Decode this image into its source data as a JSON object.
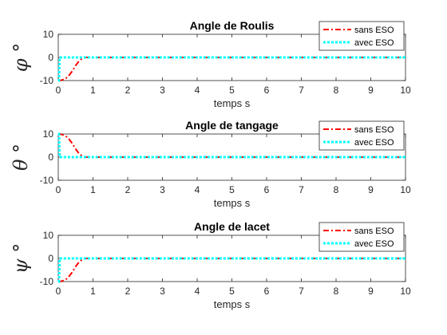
{
  "chart_data": [
    {
      "type": "line",
      "title": "Angle de Roulis",
      "xlabel": "temps s",
      "ylabel": "φ °",
      "xlim": [
        0,
        10
      ],
      "ylim": [
        -10,
        10
      ],
      "xticks": [
        "0",
        "1",
        "2",
        "3",
        "4",
        "5",
        "6",
        "7",
        "8",
        "9",
        "10"
      ],
      "yticks": [
        "10",
        "0",
        "-10"
      ],
      "legend_position": "top-right",
      "series": [
        {
          "name": "sans ESO",
          "color": "#ff0000",
          "style": "dash-dot",
          "x": [
            0,
            0.05,
            0.1,
            0.2,
            0.3,
            0.4,
            0.5,
            0.6,
            0.7,
            0.8,
            1.0,
            10
          ],
          "y": [
            -10,
            -10,
            -9.8,
            -9.3,
            -8,
            -6,
            -3.5,
            -1.5,
            -0.4,
            0,
            0,
            0
          ]
        },
        {
          "name": "avec ESO",
          "color": "#00ffff",
          "style": "dotted",
          "x": [
            0,
            0.02,
            0.04,
            0.06,
            0.1,
            0.2,
            10
          ],
          "y": [
            -10,
            -10,
            0,
            0,
            0,
            0,
            0
          ]
        }
      ]
    },
    {
      "type": "line",
      "title": "Angle de tangage",
      "xlabel": "temps s",
      "ylabel": "θ °",
      "xlim": [
        0,
        10
      ],
      "ylim": [
        -10,
        10
      ],
      "xticks": [
        "0",
        "1",
        "2",
        "3",
        "4",
        "5",
        "6",
        "7",
        "8",
        "9",
        "10"
      ],
      "yticks": [
        "10",
        "0",
        "-10"
      ],
      "legend_position": "top-right",
      "series": [
        {
          "name": "sans ESO",
          "color": "#ff0000",
          "style": "dash-dot",
          "x": [
            0,
            0.05,
            0.1,
            0.2,
            0.3,
            0.4,
            0.5,
            0.6,
            0.7,
            0.8,
            1.0,
            10
          ],
          "y": [
            10,
            10,
            9.8,
            9.3,
            8,
            6,
            3.5,
            1.5,
            0.4,
            0,
            0,
            0
          ]
        },
        {
          "name": "avec ESO",
          "color": "#00ffff",
          "style": "dotted",
          "x": [
            0,
            0.02,
            0.04,
            0.06,
            0.1,
            0.2,
            10
          ],
          "y": [
            10,
            10,
            0,
            0,
            0,
            0,
            0
          ]
        }
      ]
    },
    {
      "type": "line",
      "title": "Angle de lacet",
      "xlabel": "temps s",
      "ylabel": "ψ °",
      "xlim": [
        0,
        10
      ],
      "ylim": [
        -10,
        10
      ],
      "xticks": [
        "0",
        "1",
        "2",
        "3",
        "4",
        "5",
        "6",
        "7",
        "8",
        "9",
        "10"
      ],
      "yticks": [
        "10",
        "0",
        "-10"
      ],
      "legend_position": "top-right",
      "series": [
        {
          "name": "sans ESO",
          "color": "#ff0000",
          "style": "dash-dot",
          "x": [
            0,
            0.05,
            0.1,
            0.2,
            0.3,
            0.4,
            0.5,
            0.6,
            0.7,
            0.8,
            1.0,
            10
          ],
          "y": [
            -10,
            -10,
            -9.8,
            -9.3,
            -8,
            -6,
            -3.5,
            -1.5,
            -0.4,
            0,
            0,
            0
          ]
        },
        {
          "name": "avec ESO",
          "color": "#00ffff",
          "style": "dotted",
          "x": [
            0,
            0.02,
            0.04,
            0.06,
            0.1,
            0.2,
            10
          ],
          "y": [
            -10,
            -10,
            0,
            0,
            0,
            0,
            0
          ]
        }
      ]
    }
  ]
}
